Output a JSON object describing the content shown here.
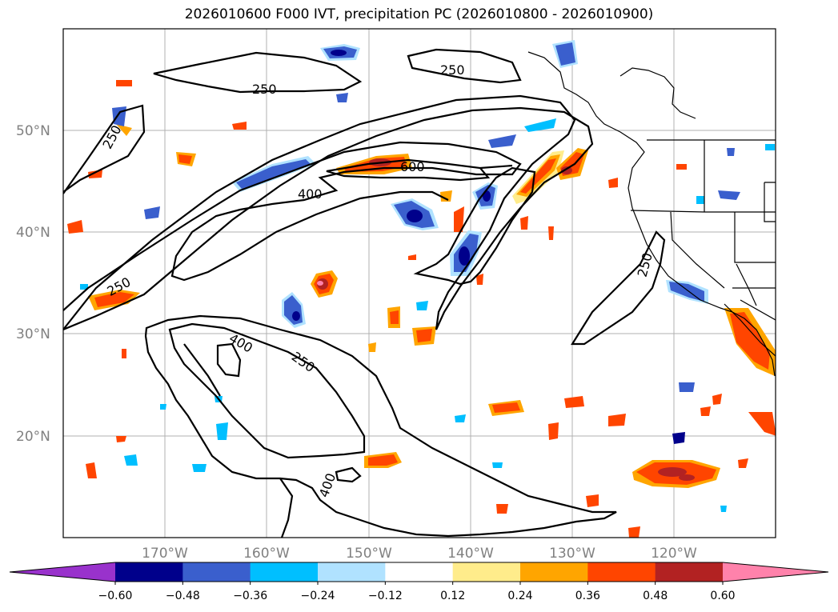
{
  "title": "2026010600 F000 IVT, precipitation PC (2026010800 - 2026010900)",
  "lat_labels": [
    "50°N",
    "40°N",
    "30°N",
    "20°N"
  ],
  "lon_labels": [
    "170°W",
    "160°W",
    "150°W",
    "140°W",
    "130°W",
    "120°W"
  ],
  "contour_labels": [
    "250",
    "250",
    "250",
    "250",
    "250",
    "250",
    "400",
    "400",
    "400",
    "600"
  ],
  "colorbar": {
    "ticks": [
      "−0.60",
      "−0.48",
      "−0.36",
      "−0.24",
      "−0.12",
      "0.12",
      "0.24",
      "0.36",
      "0.48",
      "0.60"
    ],
    "colors": [
      "#9932cc",
      "#00008b",
      "#3a5fcd",
      "#00bfff",
      "#b0e2ff",
      "#ffffff",
      "#ffec8b",
      "#ffa500",
      "#ff4500",
      "#b22222",
      "#ff82ab"
    ]
  },
  "palette": {
    "pos_light": "#ffec8b",
    "pos_orange": "#ffa500",
    "pos_red": "#ff4500",
    "pos_dark": "#b22222",
    "neg_light": "#b0e2ff",
    "neg_cyan": "#00bfff",
    "neg_blue": "#3a5fcd",
    "neg_navy": "#00008b"
  }
}
